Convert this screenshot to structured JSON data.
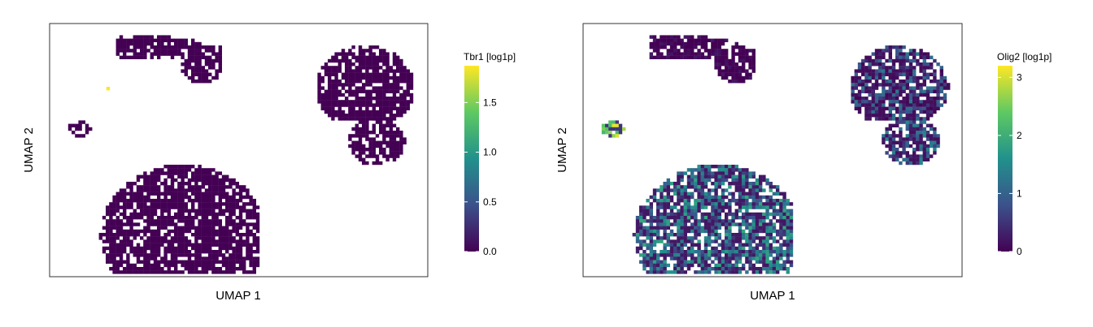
{
  "colors": {
    "viridis": [
      "#440154",
      "#3b528b",
      "#21918c",
      "#5ec962",
      "#fde725"
    ],
    "axis": "#000000",
    "background": "#ffffff"
  },
  "chart_data": [
    {
      "type": "scatter",
      "subtype": "hexbin-umap",
      "xlabel": "UMAP 1",
      "ylabel": "UMAP 2",
      "legend": {
        "title": "Tbr1 [log1p]",
        "placement": "right",
        "range": [
          0,
          1.87
        ],
        "ticks": [
          0.0,
          0.5,
          1.0,
          1.5
        ],
        "tick_labels": [
          "0.0",
          "0.5",
          "1.0",
          "1.5"
        ]
      },
      "clusters": [
        {
          "name": "top-left-strip",
          "mean_value": 0.0,
          "variability": 0.0
        },
        {
          "name": "small-left-cluster",
          "mean_value": 0.0,
          "variability": 0.0
        },
        {
          "name": "top-right-cluster",
          "mean_value": 0.0,
          "variability": 0.0
        },
        {
          "name": "right-lower-cluster",
          "mean_value": 0.0,
          "variability": 0.0
        },
        {
          "name": "large-bottom-cluster",
          "mean_value": 0.0,
          "variability": 0.0
        }
      ],
      "highlights": [
        {
          "u": 0.15,
          "v": 0.25,
          "value": 1.87
        }
      ]
    },
    {
      "type": "scatter",
      "subtype": "hexbin-umap",
      "xlabel": "UMAP 1",
      "ylabel": "UMAP 2",
      "legend": {
        "title": "Olig2 [log1p]",
        "placement": "right",
        "range": [
          0,
          3.2
        ],
        "ticks": [
          0,
          1,
          2,
          3
        ],
        "tick_labels": [
          "0",
          "1",
          "2",
          "3"
        ]
      },
      "clusters": [
        {
          "name": "top-left-strip",
          "mean_value": 0.05,
          "variability": 0.2
        },
        {
          "name": "small-left-cluster",
          "mean_value": 2.6,
          "variability": 0.5
        },
        {
          "name": "top-right-cluster",
          "mean_value": 0.6,
          "variability": 0.7
        },
        {
          "name": "right-lower-cluster",
          "mean_value": 0.8,
          "variability": 0.7
        },
        {
          "name": "large-bottom-cluster",
          "mean_value": 1.1,
          "variability": 0.8
        }
      ],
      "highlights": []
    }
  ]
}
